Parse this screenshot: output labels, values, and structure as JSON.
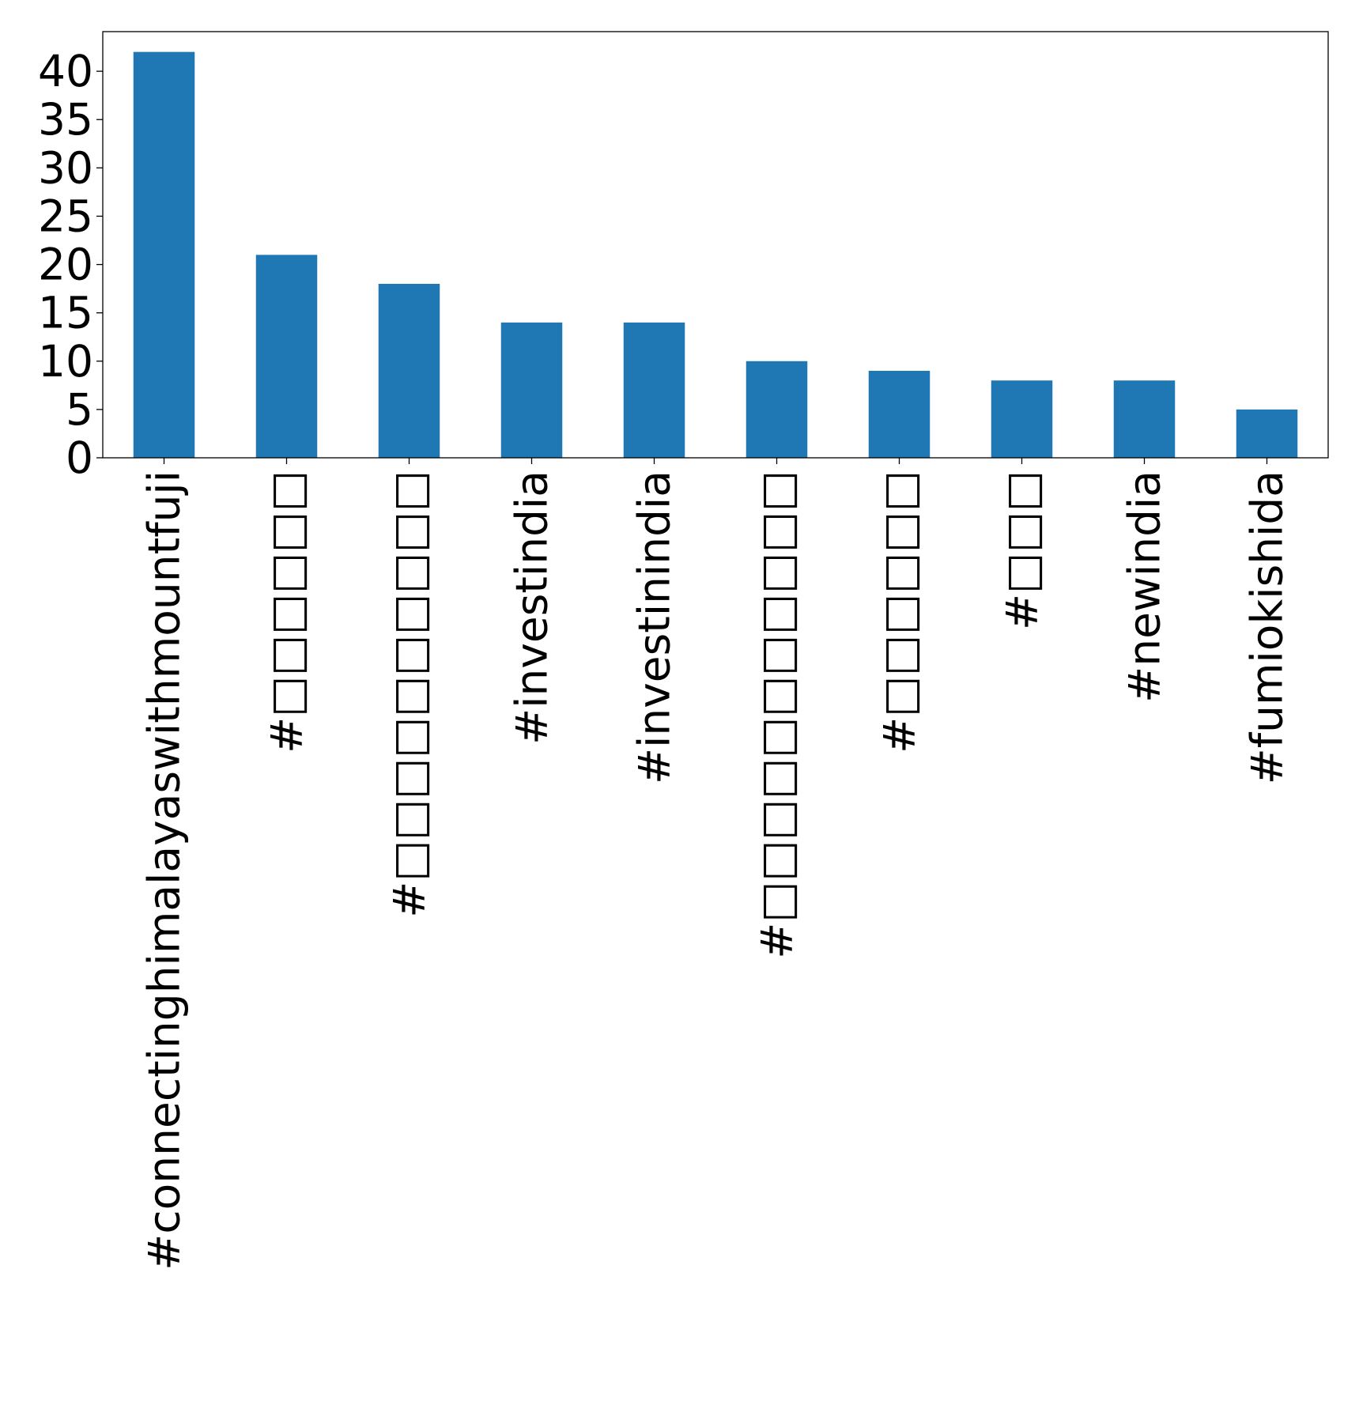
{
  "chart_data": {
    "type": "bar",
    "title": "",
    "xlabel": "",
    "ylabel": "",
    "categories": [
      "#connectinghimalayaswithmountfuji",
      "#□□□□□□",
      "#□□□□□□□□□□",
      "#investindia",
      "#investinindia",
      "#□□□□□□□□□□□",
      "#□□□□□□",
      "#□□□",
      "#newindia",
      "#fumiokishida"
    ],
    "values": [
      42,
      21,
      18,
      14,
      14,
      10,
      9,
      8,
      8,
      5
    ],
    "ylim": [
      0,
      44.1
    ],
    "yticks": [
      0,
      5,
      10,
      15,
      20,
      25,
      30,
      35,
      40
    ],
    "grid": false,
    "legend": "none",
    "bar_color": "#1f77b4"
  }
}
